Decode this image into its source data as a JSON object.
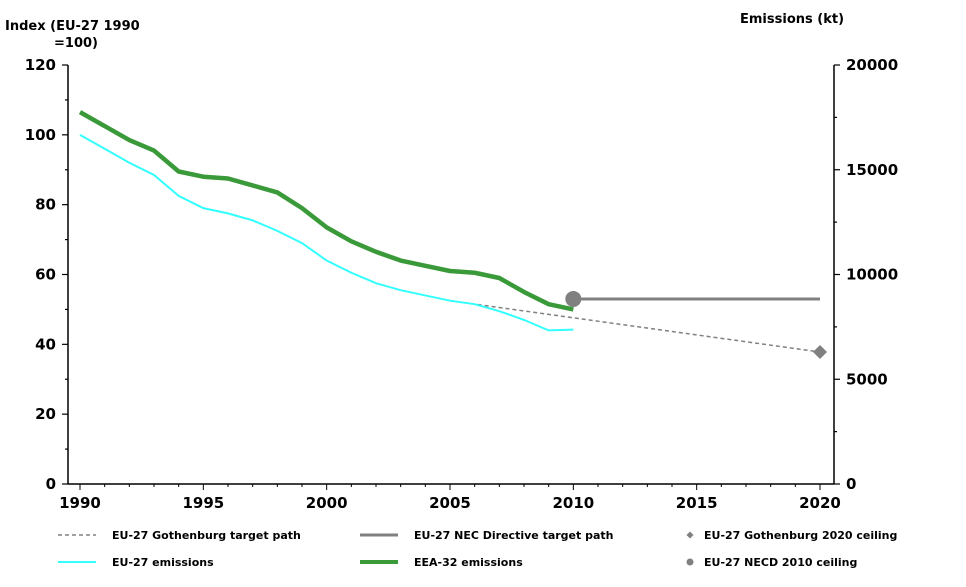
{
  "chart_data": {
    "type": "line",
    "left_axis": {
      "title_line1": "Index (EU-27 1990",
      "title_line2": "=100)",
      "range": [
        0,
        120
      ],
      "ticks": [
        "0",
        "20",
        "40",
        "60",
        "80",
        "100",
        "120"
      ]
    },
    "right_axis": {
      "title": "Emissions (kt)",
      "range": [
        0,
        20000
      ],
      "ticks": [
        "0",
        "5000",
        "10000",
        "15000",
        "20000"
      ]
    },
    "x_axis": {
      "range": [
        1990,
        2020
      ],
      "ticks": [
        "1990",
        "1995",
        "2000",
        "2005",
        "2010",
        "2015",
        "2020"
      ]
    },
    "series": [
      {
        "name": "EU-27 Gothenburg target path",
        "color": "#808080",
        "style": "dashed",
        "x": [
          2005,
          2020
        ],
        "y": [
          52.5,
          37.8
        ]
      },
      {
        "name": "EU-27 NEC Directive target path",
        "color": "#808080",
        "style": "solid",
        "x": [
          2010,
          2020
        ],
        "y": [
          53,
          53
        ]
      },
      {
        "name": "EU-27 Gothenburg 2020 ceiling",
        "color": "#808080",
        "style": "diamond",
        "x": [
          2020
        ],
        "y": [
          37.8
        ]
      },
      {
        "name": "EU-27 emissions",
        "color": "#33ffff",
        "style": "solid-thin",
        "x": [
          1990,
          1991,
          1992,
          1993,
          1994,
          1995,
          1996,
          1997,
          1998,
          1999,
          2000,
          2001,
          2002,
          2003,
          2004,
          2005,
          2006,
          2007,
          2008,
          2009,
          2010
        ],
        "y": [
          100,
          96,
          92,
          88.5,
          82.5,
          79,
          77.5,
          75.5,
          72.5,
          69,
          64,
          60.5,
          57.5,
          55.5,
          54,
          52.5,
          51.5,
          49.5,
          47,
          44,
          44.2
        ]
      },
      {
        "name": "EEA-32 emissions",
        "color": "#3a9a3a",
        "style": "solid-thick",
        "x": [
          1990,
          1991,
          1992,
          1993,
          1994,
          1995,
          1996,
          1997,
          1998,
          1999,
          2000,
          2001,
          2002,
          2003,
          2004,
          2005,
          2006,
          2007,
          2008,
          2009,
          2010
        ],
        "y": [
          106.5,
          102.5,
          98.5,
          95.5,
          89.5,
          88,
          87.5,
          85.5,
          83.5,
          79,
          73.5,
          69.5,
          66.5,
          64,
          62.5,
          61,
          60.5,
          59,
          55,
          51.5,
          50
        ]
      },
      {
        "name": "EU-27 NECD 2010 ceiling",
        "color": "#808080",
        "style": "circle",
        "x": [
          2010
        ],
        "y": [
          53
        ]
      }
    ],
    "legend": {
      "placement": "bottom",
      "rows": [
        [
          "EU-27 Gothenburg target path",
          "EU-27 NEC Directive target path",
          "EU-27 Gothenburg 2020 ceiling"
        ],
        [
          "EU-27 emissions",
          "EEA-32 emissions",
          "EU-27 NECD 2010 ceiling"
        ]
      ]
    },
    "grid": false
  }
}
